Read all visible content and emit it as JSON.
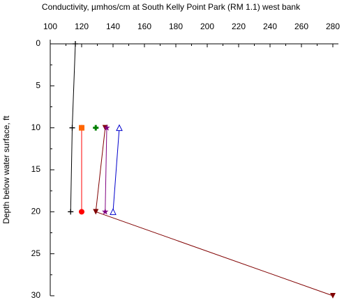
{
  "chart_data": {
    "type": "line",
    "title": "Conductivity, µmhos/cm at South Kelly Point Park (RM 1.1) west bank",
    "y_label": "Depth below water surface, ft",
    "xlim": [
      100,
      280
    ],
    "xticks": [
      100,
      120,
      140,
      160,
      180,
      200,
      220,
      240,
      260,
      280
    ],
    "ylim": [
      0,
      30
    ],
    "yticks": [
      0,
      5,
      10,
      15,
      20,
      25,
      30
    ],
    "y_inverted": true,
    "x_axis_position": "top",
    "series": [
      {
        "color": "#000000",
        "marker": "plus",
        "x": [
          116,
          114,
          113
        ],
        "y": [
          0,
          10,
          20
        ]
      },
      {
        "color": "#ff0000",
        "marker": "circle",
        "x": [
          120,
          120
        ],
        "y": [
          10,
          20
        ]
      },
      {
        "color": "#ff6600",
        "marker": "square",
        "x": [
          120
        ],
        "y": [
          10
        ]
      },
      {
        "color": "#008000",
        "marker": "plusbox",
        "x": [
          129
        ],
        "y": [
          10
        ]
      },
      {
        "color": "#800000",
        "marker": "triangle-down",
        "x": [
          135,
          129,
          280
        ],
        "y": [
          10,
          20,
          30
        ]
      },
      {
        "color": "#800080",
        "marker": "star",
        "x": [
          136,
          135
        ],
        "y": [
          10,
          20
        ]
      },
      {
        "color": "#0000cc",
        "marker": "triangle-open",
        "x": [
          144,
          140
        ],
        "y": [
          10,
          20
        ]
      }
    ]
  }
}
